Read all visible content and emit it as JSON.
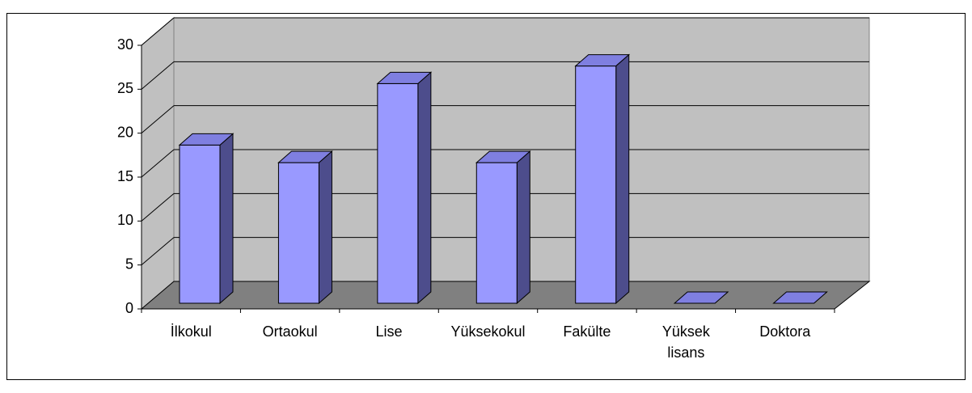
{
  "chart_data": {
    "type": "bar3d",
    "categories": [
      "İlkokul",
      "Ortaokul",
      "Lise",
      "Yüksekokul",
      "Fakülte",
      "Yüksek lisans",
      "Doktora"
    ],
    "values": [
      18,
      16,
      25,
      16,
      27,
      0,
      0
    ],
    "color": "#9999ff",
    "ylim": [
      0,
      30
    ],
    "yticks": [
      0,
      5,
      10,
      15,
      20,
      25,
      30
    ],
    "grid": true
  }
}
